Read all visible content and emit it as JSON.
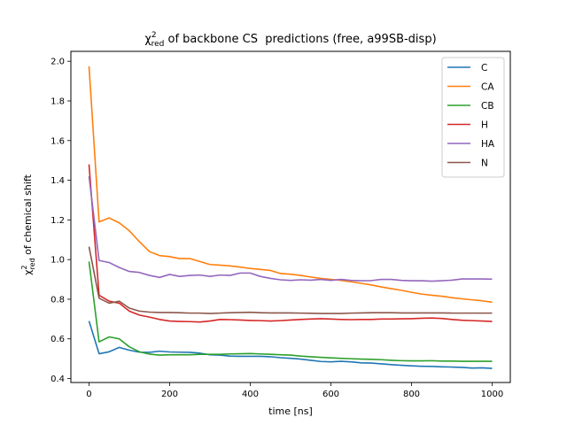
{
  "chart_data": {
    "type": "line",
    "title_prefix": "χ",
    "title_sup": "2",
    "title_sub": "red",
    "title_suffix": " of backbone CS  predictions (free, a99SB-disp)",
    "xlabel": "time [ns]",
    "ylabel_prefix": "χ",
    "ylabel_sup": "2",
    "ylabel_sub": "red",
    "ylabel_suffix": " of chemical shift",
    "xlim": [
      -45,
      1045
    ],
    "ylim": [
      0.38,
      2.05
    ],
    "xticks": [
      0,
      200,
      400,
      600,
      800,
      1000
    ],
    "yticks": [
      0.4,
      0.6,
      0.8,
      1.0,
      1.2,
      1.4,
      1.6,
      1.8,
      2.0
    ],
    "ytick_labels": [
      "0.4",
      "0.6",
      "0.8",
      "1.0",
      "1.2",
      "1.4",
      "1.6",
      "1.8",
      "2.0"
    ],
    "grid": false,
    "legend_position": "top-right",
    "x": [
      0,
      25,
      50,
      75,
      100,
      125,
      150,
      175,
      200,
      225,
      250,
      275,
      300,
      325,
      350,
      375,
      400,
      425,
      450,
      475,
      500,
      525,
      550,
      575,
      600,
      625,
      650,
      675,
      700,
      725,
      750,
      775,
      800,
      825,
      850,
      875,
      900,
      925,
      950,
      975,
      1000
    ],
    "series": [
      {
        "name": "C",
        "color": "#1f77b4",
        "values": [
          0.69,
          0.525,
          0.535,
          0.557,
          0.543,
          0.533,
          0.532,
          0.538,
          0.534,
          0.533,
          0.532,
          0.528,
          0.52,
          0.518,
          0.513,
          0.512,
          0.512,
          0.512,
          0.51,
          0.505,
          0.502,
          0.498,
          0.492,
          0.486,
          0.484,
          0.487,
          0.484,
          0.479,
          0.478,
          0.474,
          0.47,
          0.467,
          0.464,
          0.462,
          0.461,
          0.459,
          0.458,
          0.456,
          0.453,
          0.454,
          0.451
        ]
      },
      {
        "name": "CA",
        "color": "#ff7f0e",
        "values": [
          1.975,
          1.19,
          1.21,
          1.185,
          1.145,
          1.09,
          1.04,
          1.02,
          1.015,
          1.005,
          1.005,
          0.99,
          0.975,
          0.972,
          0.968,
          0.962,
          0.955,
          0.95,
          0.945,
          0.93,
          0.926,
          0.92,
          0.912,
          0.905,
          0.9,
          0.895,
          0.888,
          0.88,
          0.872,
          0.862,
          0.853,
          0.845,
          0.835,
          0.826,
          0.82,
          0.815,
          0.808,
          0.802,
          0.797,
          0.792,
          0.785
        ]
      },
      {
        "name": "CB",
        "color": "#2ca02c",
        "values": [
          0.99,
          0.585,
          0.61,
          0.6,
          0.56,
          0.535,
          0.523,
          0.518,
          0.52,
          0.52,
          0.52,
          0.522,
          0.522,
          0.522,
          0.524,
          0.525,
          0.526,
          0.524,
          0.522,
          0.52,
          0.518,
          0.513,
          0.51,
          0.507,
          0.504,
          0.502,
          0.5,
          0.498,
          0.497,
          0.495,
          0.492,
          0.49,
          0.489,
          0.489,
          0.49,
          0.488,
          0.488,
          0.487,
          0.487,
          0.487,
          0.487
        ]
      },
      {
        "name": "H",
        "color": "#d62728",
        "values": [
          1.48,
          0.82,
          0.79,
          0.78,
          0.74,
          0.72,
          0.71,
          0.698,
          0.69,
          0.688,
          0.687,
          0.685,
          0.69,
          0.698,
          0.697,
          0.695,
          0.693,
          0.692,
          0.69,
          0.692,
          0.695,
          0.698,
          0.7,
          0.702,
          0.7,
          0.698,
          0.697,
          0.698,
          0.698,
          0.7,
          0.7,
          0.701,
          0.702,
          0.704,
          0.705,
          0.703,
          0.698,
          0.694,
          0.692,
          0.69,
          0.688
        ]
      },
      {
        "name": "HA",
        "color": "#9467bd",
        "values": [
          1.42,
          0.995,
          0.985,
          0.96,
          0.94,
          0.935,
          0.92,
          0.91,
          0.925,
          0.915,
          0.92,
          0.922,
          0.915,
          0.922,
          0.92,
          0.932,
          0.932,
          0.915,
          0.905,
          0.898,
          0.895,
          0.898,
          0.896,
          0.9,
          0.895,
          0.9,
          0.895,
          0.893,
          0.894,
          0.9,
          0.9,
          0.895,
          0.893,
          0.893,
          0.891,
          0.893,
          0.896,
          0.902,
          0.902,
          0.902,
          0.901
        ]
      },
      {
        "name": "N",
        "color": "#8c564b",
        "values": [
          1.065,
          0.805,
          0.78,
          0.79,
          0.755,
          0.74,
          0.735,
          0.733,
          0.733,
          0.732,
          0.73,
          0.73,
          0.728,
          0.73,
          0.732,
          0.733,
          0.734,
          0.732,
          0.731,
          0.731,
          0.731,
          0.73,
          0.729,
          0.728,
          0.728,
          0.728,
          0.73,
          0.731,
          0.732,
          0.732,
          0.732,
          0.731,
          0.731,
          0.731,
          0.731,
          0.731,
          0.73,
          0.73,
          0.73,
          0.73,
          0.73
        ]
      }
    ]
  }
}
